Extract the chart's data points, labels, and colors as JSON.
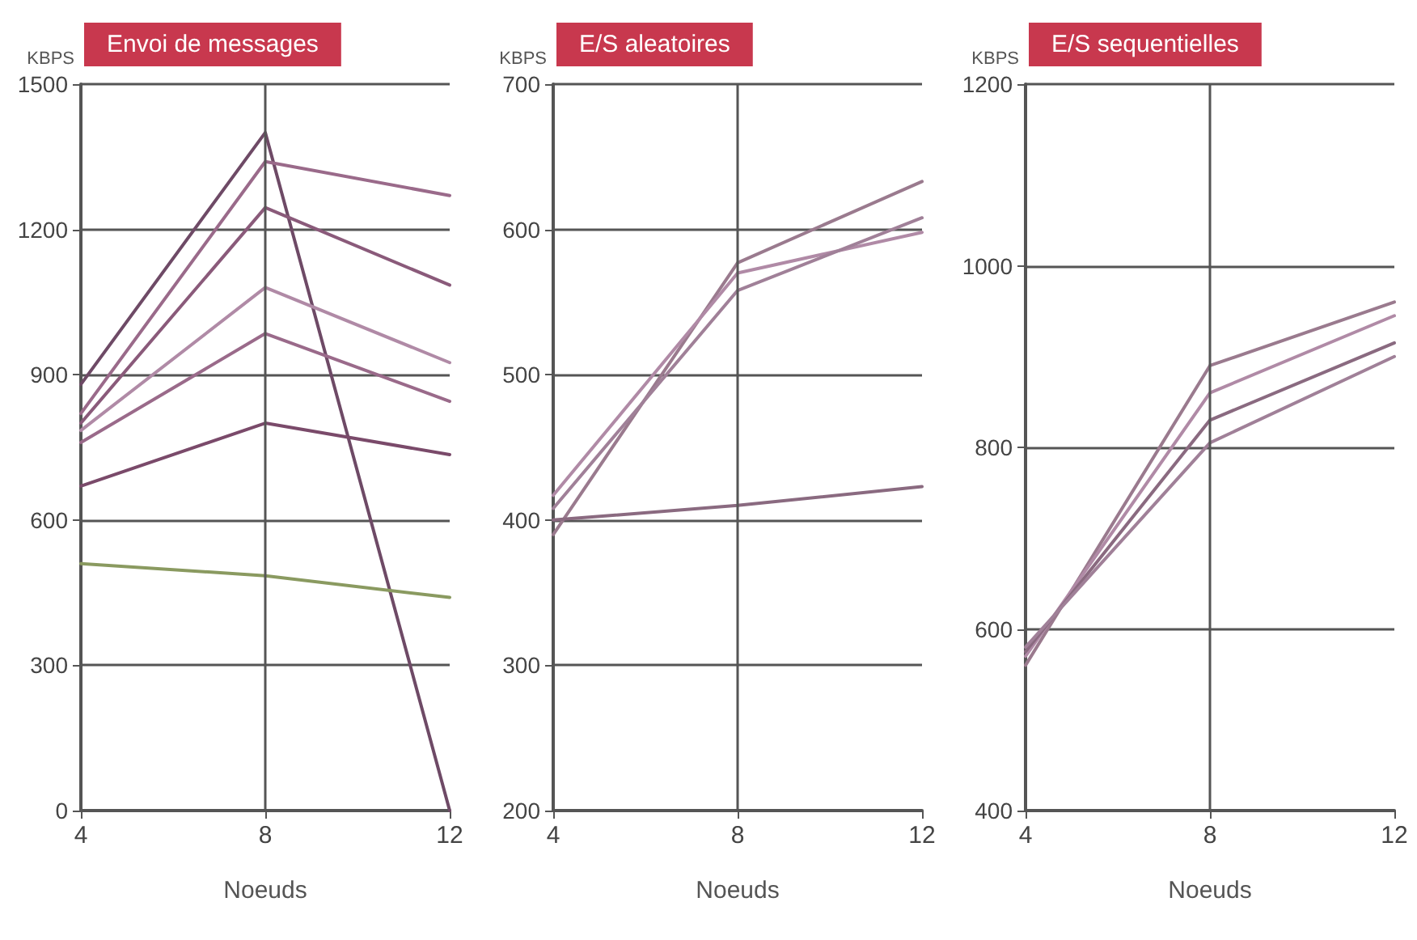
{
  "chart_data": [
    {
      "type": "line",
      "title": "Envoi de messages",
      "xlabel": "Noeuds",
      "ylabel": "KBPS",
      "x": [
        4,
        8,
        12
      ],
      "xlim": [
        4,
        12
      ],
      "xticks": [
        4,
        8,
        12
      ],
      "ylim": [
        0,
        1500
      ],
      "yticks": [
        0,
        300,
        600,
        900,
        1200,
        1500
      ],
      "grid": "y",
      "ref_lines": [
        {
          "axis": "x",
          "value": 8
        }
      ],
      "marker": "none",
      "series": [
        {
          "color": "#6e4a66",
          "values": [
            880,
            1400,
            0
          ]
        },
        {
          "color": "#9a6a8a",
          "values": [
            820,
            1340,
            1270
          ]
        },
        {
          "color": "#8a5a7a",
          "values": [
            800,
            1245,
            1085
          ]
        },
        {
          "color": "#b08aa6",
          "values": [
            785,
            1080,
            925
          ]
        },
        {
          "color": "#9a6a8a",
          "values": [
            760,
            985,
            845
          ]
        },
        {
          "color": "#7a4a6a",
          "values": [
            670,
            800,
            735
          ]
        },
        {
          "color": "#8a9a60",
          "values": [
            510,
            485,
            440
          ]
        }
      ]
    },
    {
      "type": "line",
      "title": "E/S aleatoires",
      "xlabel": "Noeuds",
      "ylabel": "KBPS",
      "x": [
        4,
        8,
        12
      ],
      "xlim": [
        4,
        12
      ],
      "xticks": [
        4,
        8,
        12
      ],
      "ylim": [
        200,
        700
      ],
      "yticks": [
        200,
        300,
        400,
        500,
        600,
        700
      ],
      "grid": "y",
      "ref_lines": [
        {
          "axis": "x",
          "value": 8
        }
      ],
      "marker": "none",
      "series": [
        {
          "color": "#9a7a8e",
          "values": [
            390,
            577,
            633
          ]
        },
        {
          "color": "#b08aa6",
          "values": [
            417,
            570,
            598
          ]
        },
        {
          "color": "#a08098",
          "values": [
            408,
            558,
            608
          ]
        },
        {
          "color": "#8a6a80",
          "values": [
            400,
            410,
            423
          ]
        }
      ]
    },
    {
      "type": "line",
      "title": "E/S sequentielles",
      "xlabel": "Noeuds",
      "ylabel": "KBPS",
      "x": [
        4,
        8,
        12
      ],
      "xlim": [
        4,
        12
      ],
      "xticks": [
        4,
        8,
        12
      ],
      "ylim": [
        400,
        1200
      ],
      "yticks": [
        400,
        600,
        800,
        1000,
        1200
      ],
      "grid": "y",
      "ref_lines": [
        {
          "axis": "x",
          "value": 8
        }
      ],
      "marker": "none",
      "series": [
        {
          "color": "#9a7a8e",
          "values": [
            560,
            890,
            960
          ]
        },
        {
          "color": "#b08aa6",
          "values": [
            570,
            860,
            945
          ]
        },
        {
          "color": "#8a6a80",
          "values": [
            575,
            830,
            915
          ]
        },
        {
          "color": "#a08098",
          "values": [
            580,
            805,
            900
          ]
        }
      ]
    }
  ]
}
